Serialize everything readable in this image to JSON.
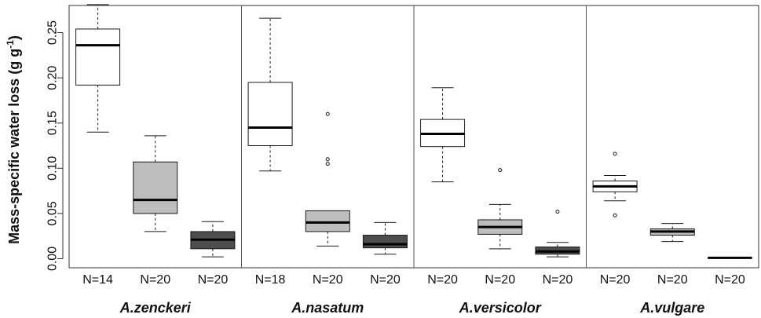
{
  "chart_data": {
    "type": "boxplot",
    "ylabel": "Mass-specific water loss (g g-1)",
    "ylabel_main": "Mass-specific water loss (g g",
    "ylabel_sup": "-1",
    "ylabel_close": ")",
    "ylim": [
      -0.01,
      0.28
    ],
    "yticks": [
      0.0,
      0.05,
      0.1,
      0.15,
      0.2,
      0.25
    ],
    "ytick_labels": [
      "0.00",
      "0.05",
      "0.10",
      "0.15",
      "0.20",
      "0.25"
    ],
    "grid": false,
    "colors": {
      "level1": "#ffffff",
      "level2": "#bdbdbd",
      "level3": "#4d4d4d",
      "stroke": "#1a1a1a",
      "median": "#000000"
    },
    "groups": [
      {
        "name": "A.zenckeri",
        "boxes": [
          {
            "n_label": "N=14",
            "level": 1,
            "whisker_low": 0.14,
            "q1": 0.192,
            "median": 0.236,
            "q3": 0.254,
            "whisker_high": 0.281,
            "outliers": []
          },
          {
            "n_label": "N=20",
            "level": 2,
            "whisker_low": 0.03,
            "q1": 0.05,
            "median": 0.065,
            "q3": 0.107,
            "whisker_high": 0.136,
            "outliers": []
          },
          {
            "n_label": "N=20",
            "level": 3,
            "whisker_low": 0.002,
            "q1": 0.011,
            "median": 0.021,
            "q3": 0.03,
            "whisker_high": 0.041,
            "outliers": []
          }
        ]
      },
      {
        "name": "A.nasatum",
        "boxes": [
          {
            "n_label": "N=18",
            "level": 1,
            "whisker_low": 0.097,
            "q1": 0.125,
            "median": 0.145,
            "q3": 0.195,
            "whisker_high": 0.266,
            "outliers": []
          },
          {
            "n_label": "N=20",
            "level": 2,
            "whisker_low": 0.014,
            "q1": 0.03,
            "median": 0.04,
            "q3": 0.053,
            "whisker_high": 0.053,
            "outliers": [
              0.16,
              0.11,
              0.105
            ]
          },
          {
            "n_label": "N=20",
            "level": 3,
            "whisker_low": 0.005,
            "q1": 0.012,
            "median": 0.016,
            "q3": 0.026,
            "whisker_high": 0.04,
            "outliers": []
          }
        ]
      },
      {
        "name": "A.versicolor",
        "boxes": [
          {
            "n_label": "N=20",
            "level": 1,
            "whisker_low": 0.085,
            "q1": 0.124,
            "median": 0.138,
            "q3": 0.154,
            "whisker_high": 0.189,
            "outliers": []
          },
          {
            "n_label": "N=20",
            "level": 2,
            "whisker_low": 0.011,
            "q1": 0.027,
            "median": 0.035,
            "q3": 0.043,
            "whisker_high": 0.06,
            "outliers": [
              0.098
            ]
          },
          {
            "n_label": "N=20",
            "level": 3,
            "whisker_low": 0.002,
            "q1": 0.005,
            "median": 0.008,
            "q3": 0.013,
            "whisker_high": 0.018,
            "outliers": [
              0.052
            ]
          }
        ]
      },
      {
        "name": "A.vulgare",
        "boxes": [
          {
            "n_label": "N=20",
            "level": 1,
            "whisker_low": 0.064,
            "q1": 0.074,
            "median": 0.08,
            "q3": 0.086,
            "whisker_high": 0.092,
            "outliers": [
              0.116,
              0.048
            ]
          },
          {
            "n_label": "N=20",
            "level": 2,
            "whisker_low": 0.019,
            "q1": 0.026,
            "median": 0.03,
            "q3": 0.033,
            "whisker_high": 0.039,
            "outliers": []
          },
          {
            "n_label": "N=20",
            "level": 3,
            "whisker_low": 0.001,
            "q1": 0.001,
            "median": 0.001,
            "q3": 0.001,
            "whisker_high": 0.001,
            "outliers": []
          }
        ]
      }
    ]
  }
}
